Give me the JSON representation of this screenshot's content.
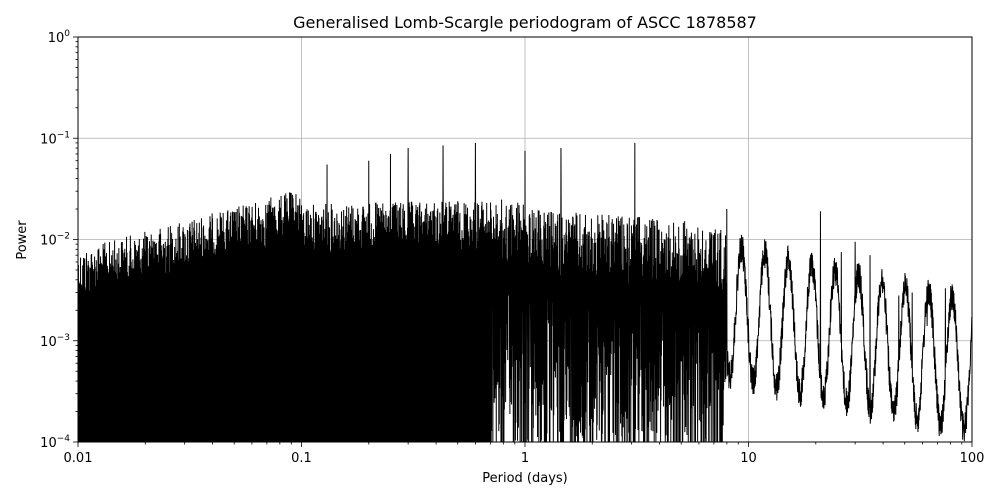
{
  "chart_data": {
    "type": "line",
    "title": "Generalised Lomb-Scargle periodogram of ASCC 1878587",
    "xlabel": "Period (days)",
    "ylabel": "Power",
    "xscale": "log",
    "yscale": "log",
    "xlim": [
      0.01,
      100
    ],
    "ylim": [
      0.0001,
      1
    ],
    "grid": true,
    "x_ticks": [
      {
        "value": 0.01,
        "label": "0.01"
      },
      {
        "value": 0.1,
        "label": "0.1"
      },
      {
        "value": 1,
        "label": "1"
      },
      {
        "value": 10,
        "label": "10"
      },
      {
        "value": 100,
        "label": "100"
      }
    ],
    "y_ticks": [
      {
        "value": 0.0001,
        "base": "10",
        "exp": "−4"
      },
      {
        "value": 0.001,
        "base": "10",
        "exp": "−3"
      },
      {
        "value": 0.01,
        "base": "10",
        "exp": "−2"
      },
      {
        "value": 0.1,
        "base": "10",
        "exp": "−1"
      },
      {
        "value": 1,
        "base": "10",
        "exp": "0"
      }
    ],
    "line_color": "#000000",
    "peaks": [
      {
        "x": 0.13,
        "y": 0.055
      },
      {
        "x": 0.2,
        "y": 0.06
      },
      {
        "x": 0.25,
        "y": 0.07
      },
      {
        "x": 0.3,
        "y": 0.08
      },
      {
        "x": 0.43,
        "y": 0.085
      },
      {
        "x": 0.6,
        "y": 0.09
      },
      {
        "x": 1.0,
        "y": 0.075
      },
      {
        "x": 1.45,
        "y": 0.08
      },
      {
        "x": 3.1,
        "y": 0.09
      },
      {
        "x": 8.0,
        "y": 0.02
      },
      {
        "x": 21.0,
        "y": 0.019
      },
      {
        "x": 26.0,
        "y": 0.0075
      },
      {
        "x": 30.0,
        "y": 0.0095
      },
      {
        "x": 35.0,
        "y": 0.007
      },
      {
        "x": 47.0,
        "y": 0.0028
      },
      {
        "x": 54.0,
        "y": 0.003
      },
      {
        "x": 63.0,
        "y": 0.0014
      },
      {
        "x": 76.0,
        "y": 0.0033
      }
    ]
  }
}
